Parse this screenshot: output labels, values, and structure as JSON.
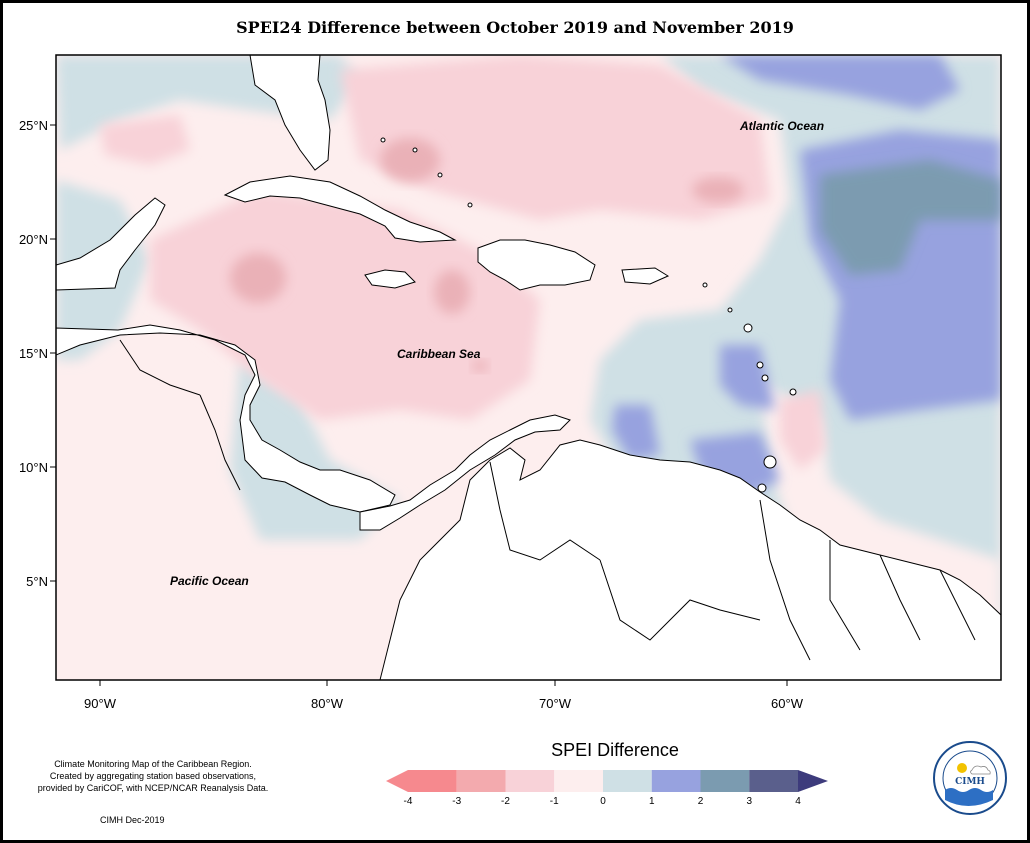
{
  "title": "SPEI24 Difference between October 2019 and November 2019",
  "map": {
    "labels": {
      "atlantic": "Atlantic Ocean",
      "caribbean": "Caribbean Sea",
      "pacific": "Pacific Ocean"
    },
    "lat_ticks": [
      "25°N",
      "20°N",
      "15°N",
      "10°N",
      "5°N"
    ],
    "lon_ticks": [
      "90°W",
      "80°W",
      "70°W",
      "60°W"
    ],
    "colors": {
      "land": "#ffffff",
      "border": "#000000"
    }
  },
  "legend": {
    "title": "SPEI Difference",
    "ticks": [
      "-4",
      "-3",
      "-2",
      "-1",
      "0",
      "1",
      "2",
      "3",
      "4"
    ],
    "colors": [
      "#f6898e",
      "#f3aaae",
      "#f8d2d8",
      "#fdeeee",
      "#cfe0e5",
      "#97a2df",
      "#7b9bb0",
      "#5a5f8c",
      "#3d3b7c"
    ]
  },
  "credit": {
    "lines": [
      "Climate Monitoring Map of the Caribbean Region.",
      "Created by aggregating station based observations,",
      "provided by CariCOF, with NCEP/NCAR Reanalysis Data."
    ],
    "date": "CIMH Dec-2019"
  },
  "logo": {
    "text": "CIMH",
    "ring_text": "Caribbean Institute for Meteorology and Hydrology"
  }
}
